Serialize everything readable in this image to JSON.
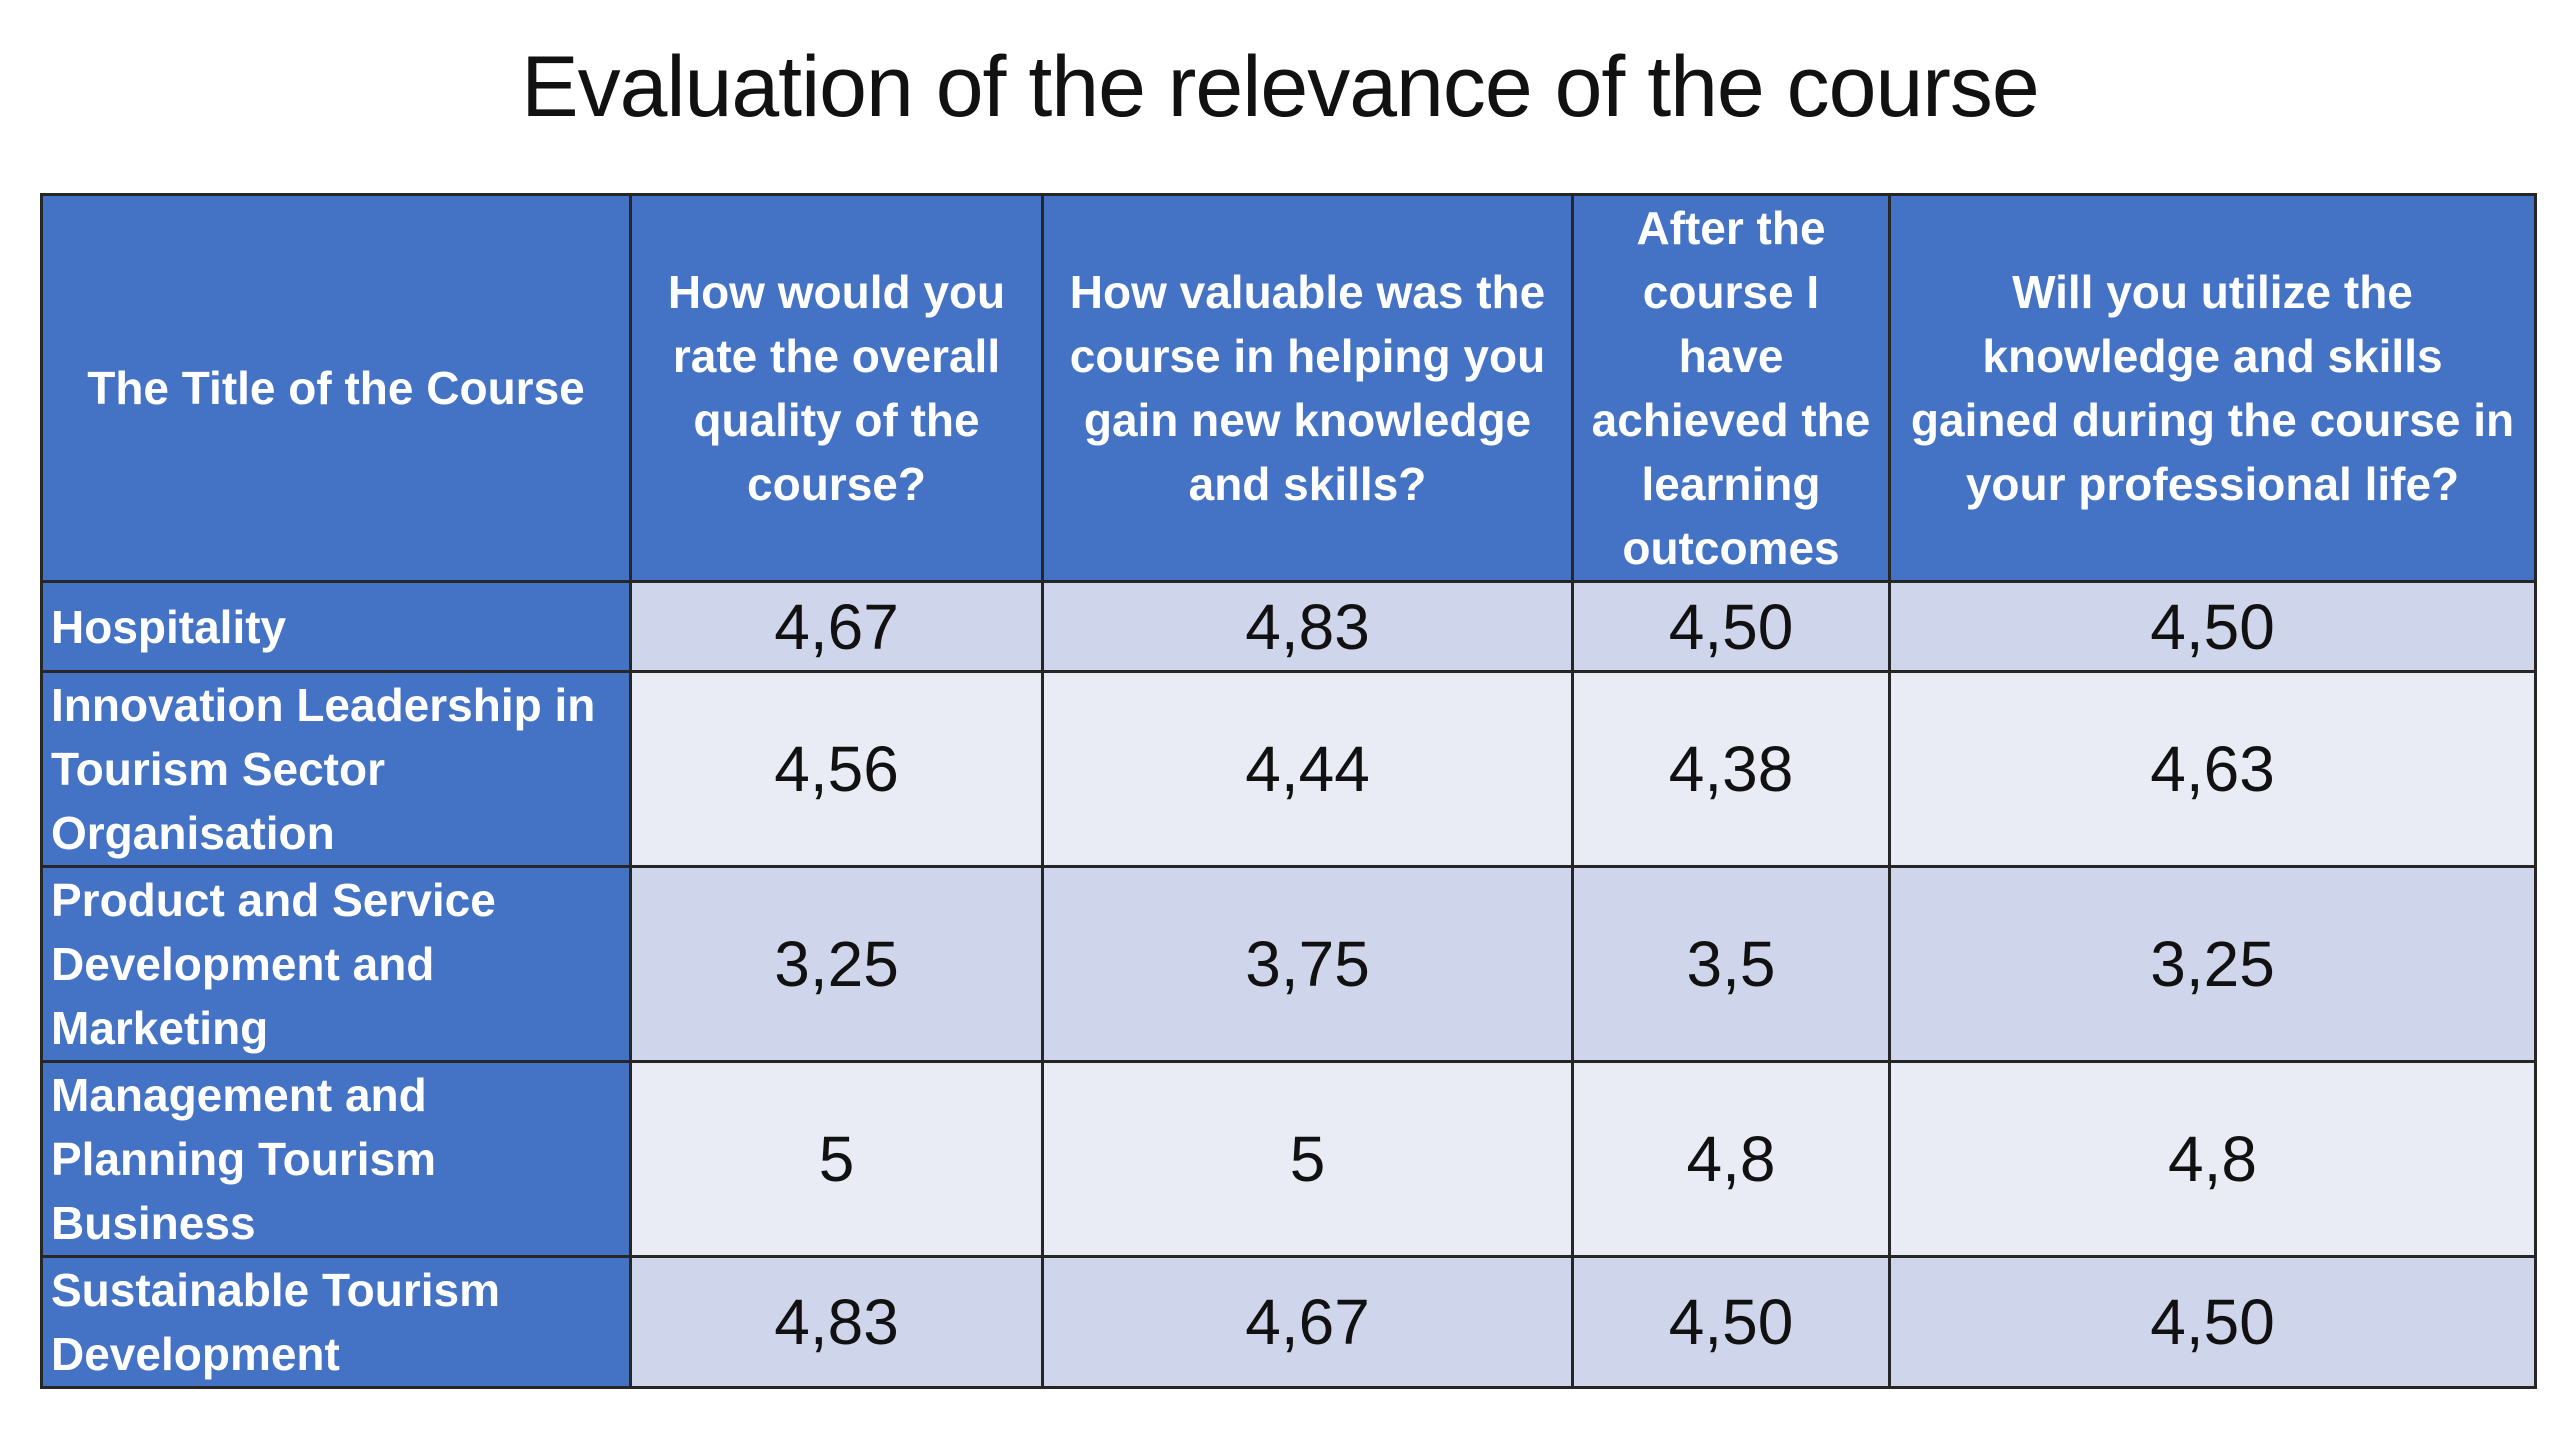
{
  "title": "Evaluation of the relevance of the course",
  "colors": {
    "header_fill": "#4472c4",
    "row_band_dark": "#cfd5ea",
    "row_band_light": "#e9ebf5",
    "grid": "#262626"
  },
  "chart_data": {
    "type": "table",
    "title": "Evaluation of the relevance of the course",
    "columns": [
      "The Title of the Course",
      "How would you rate the overall quality of the course?",
      "How valuable was the course in helping you gain new knowledge and skills?",
      "After the course I have achieved the learning outcomes",
      "Will you utilize the knowledge and skills gained during the course in your professional life?"
    ],
    "rows": [
      {
        "course": "Hospitality",
        "values": [
          "4,67",
          "4,83",
          "4,50",
          "4,50"
        ]
      },
      {
        "course": "Innovation Leadership in Tourism Sector Organisation",
        "values": [
          "4,56",
          "4,44",
          "4,38",
          "4,63"
        ]
      },
      {
        "course": "Product and Service Development and Marketing",
        "values": [
          "3,25",
          "3,75",
          "3,5",
          "3,25"
        ]
      },
      {
        "course": "Management and Planning Tourism Business",
        "values": [
          "5",
          "5",
          "4,8",
          "4,8"
        ]
      },
      {
        "course": "Sustainable Tourism Development",
        "values": [
          "4,83",
          "4,67",
          "4,50",
          "4,50"
        ]
      }
    ]
  }
}
